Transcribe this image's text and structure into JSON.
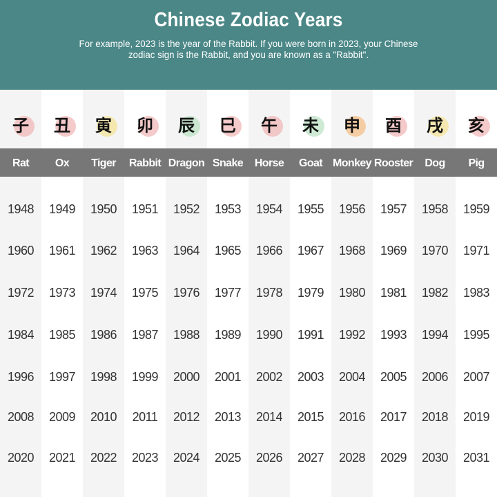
{
  "header": {
    "title": "Chinese Zodiac Years",
    "subtitle": "For example, 2023 is the year of the Rabbit. If you were born in 2023, your Chinese zodiac sign is the Rabbit, and you are known as a \"Rabbit\"."
  },
  "colors": {
    "header_bg": "#4b8787",
    "name_band": "#777777",
    "alt_column": "#f4f4f4"
  },
  "signs": [
    {
      "name": "Rat",
      "icon": "rat-icon",
      "char": "子",
      "blob": "#f2b8b8"
    },
    {
      "name": "Ox",
      "icon": "ox-icon",
      "char": "丑",
      "blob": "#f2b8b8"
    },
    {
      "name": "Tiger",
      "icon": "tiger-icon",
      "char": "寅",
      "blob": "#f4e49a"
    },
    {
      "name": "Rabbit",
      "icon": "rabbit-icon",
      "char": "卯",
      "blob": "#f2b8b8"
    },
    {
      "name": "Dragon",
      "icon": "dragon-icon",
      "char": "辰",
      "blob": "#bfe3c6"
    },
    {
      "name": "Snake",
      "icon": "snake-icon",
      "char": "巳",
      "blob": "#f2b8b8"
    },
    {
      "name": "Horse",
      "icon": "horse-icon",
      "char": "午",
      "blob": "#f2b8b8"
    },
    {
      "name": "Goat",
      "icon": "goat-icon",
      "char": "未",
      "blob": "#bfe3c6"
    },
    {
      "name": "Monkey",
      "icon": "monkey-icon",
      "char": "申",
      "blob": "#f6c089"
    },
    {
      "name": "Rooster",
      "icon": "rooster-icon",
      "char": "酉",
      "blob": "#f2b8b8"
    },
    {
      "name": "Dog",
      "icon": "dog-icon",
      "char": "戌",
      "blob": "#f4e49a"
    },
    {
      "name": "Pig",
      "icon": "pig-icon",
      "char": "亥",
      "blob": "#f2b8b8"
    }
  ],
  "years": [
    [
      "1948",
      "1949",
      "1950",
      "1951",
      "1952",
      "1953",
      "1954",
      "1955",
      "1956",
      "1957",
      "1958",
      "1959"
    ],
    [
      "1960",
      "1961",
      "1962",
      "1963",
      "1964",
      "1965",
      "1966",
      "1967",
      "1968",
      "1969",
      "1970",
      "1971"
    ],
    [
      "1972",
      "1973",
      "1974",
      "1975",
      "1976",
      "1977",
      "1978",
      "1979",
      "1980",
      "1981",
      "1982",
      "1983"
    ],
    [
      "1984",
      "1985",
      "1986",
      "1987",
      "1988",
      "1989",
      "1990",
      "1991",
      "1992",
      "1993",
      "1994",
      "1995"
    ],
    [
      "1996",
      "1997",
      "1998",
      "1999",
      "2000",
      "2001",
      "2002",
      "2003",
      "2004",
      "2005",
      "2006",
      "2007"
    ],
    [
      "2008",
      "2009",
      "2010",
      "2011",
      "2012",
      "2013",
      "2014",
      "2015",
      "2016",
      "2017",
      "2018",
      "2019"
    ],
    [
      "2020",
      "2021",
      "2022",
      "2023",
      "2024",
      "2025",
      "2026",
      "2027",
      "2028",
      "2029",
      "2030",
      "2031"
    ]
  ]
}
